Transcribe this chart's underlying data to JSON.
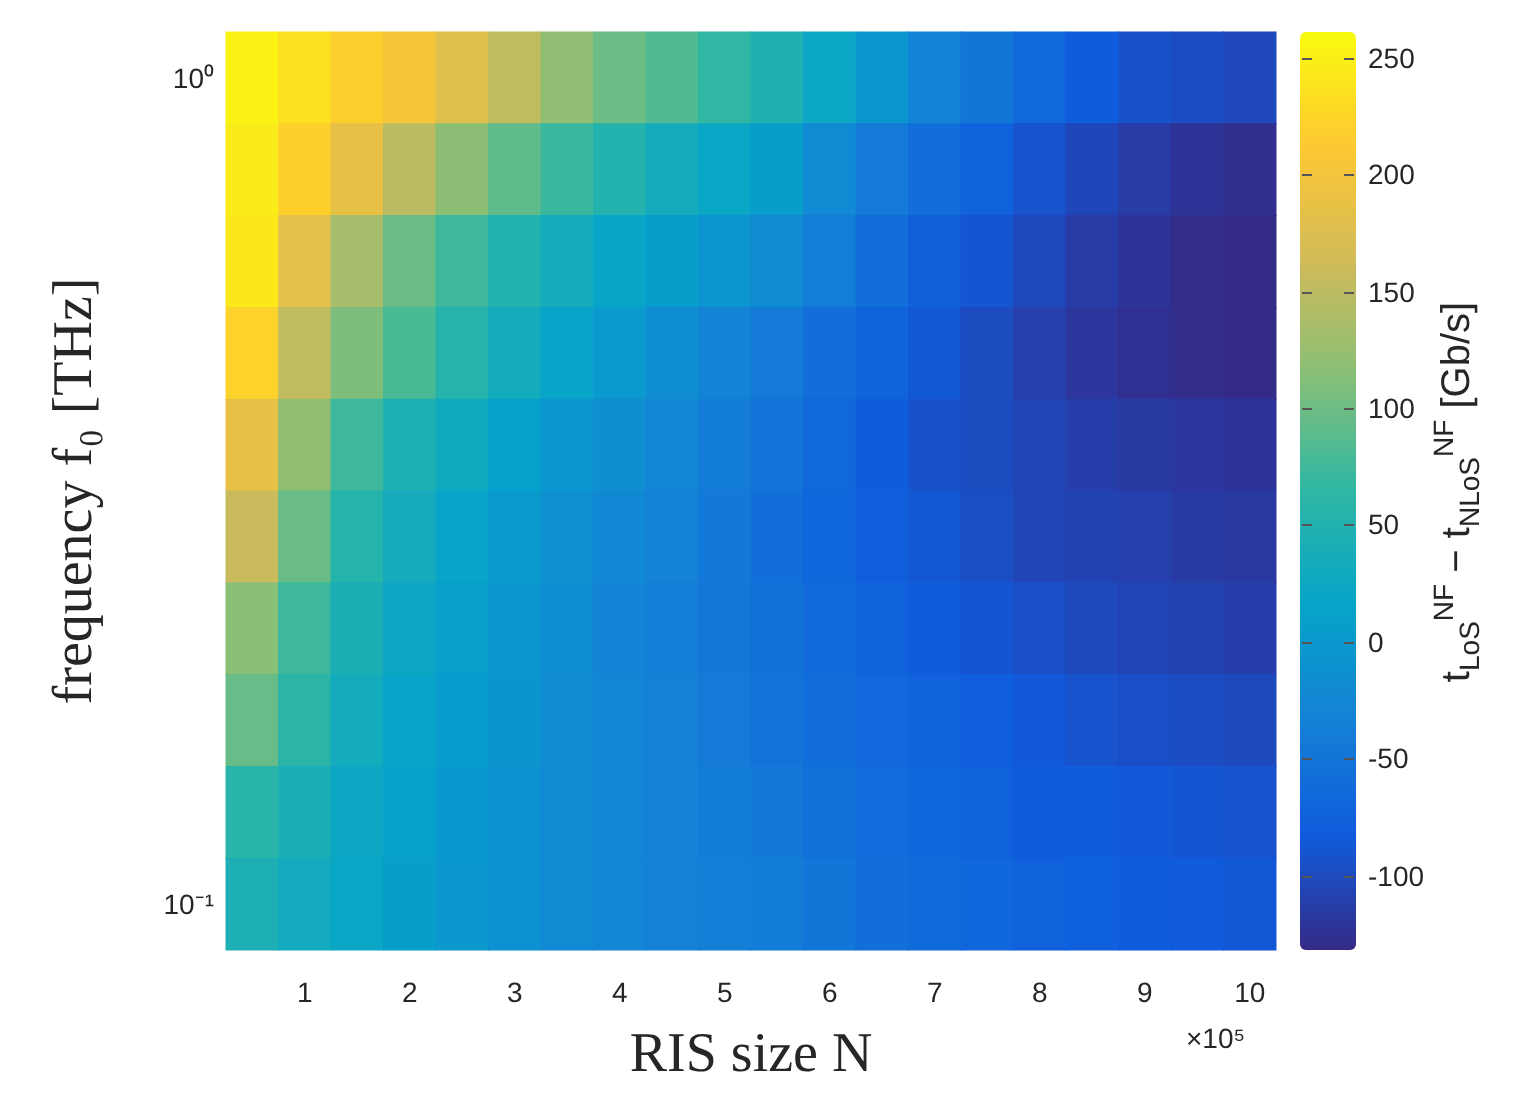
{
  "chart_data": {
    "type": "heatmap",
    "xlabel": "RIS size N",
    "ylabel": "frequency f₀ [THz]",
    "clabel": "t$_{LoS}$$^{NF}$ − t$_{NLoS}$$^{NF}$ [Gb/s]",
    "annotations": [
      "×10⁵"
    ],
    "categories": [
      null,
      "1",
      null,
      "2",
      null,
      "3",
      null,
      "4",
      null,
      "5",
      null,
      "6",
      null,
      "7",
      null,
      "8",
      null,
      "9",
      null,
      "10"
    ],
    "y_categories": [
      "10⁰",
      null,
      null,
      null,
      null,
      null,
      null,
      null,
      null,
      "10⁻¹"
    ],
    "clim": [
      -132,
      261
    ],
    "cticks": [
      -100,
      -50,
      0,
      50,
      100,
      150,
      200,
      250
    ],
    "cells": [
      [
        253,
        235,
        218,
        203,
        178,
        151,
        120,
        98,
        83,
        65,
        47,
        23,
        -3,
        -30,
        -50,
        -67,
        -83,
        -93,
        -99,
        -103
      ],
      [
        247,
        220,
        187,
        148,
        117,
        92,
        71,
        52,
        33,
        20,
        6,
        -21,
        -42,
        -57,
        -75,
        -92,
        -104,
        -114,
        -123,
        -128
      ],
      [
        243,
        182,
        134,
        97,
        73,
        52,
        34,
        19,
        7,
        -5,
        -18,
        -39,
        -59,
        -77,
        -90,
        -102,
        -114,
        -123,
        -129,
        -131
      ],
      [
        222,
        152,
        108,
        80,
        55,
        33,
        18,
        2,
        -17,
        -30,
        -42,
        -57,
        -72,
        -87,
        -100,
        -111,
        -120,
        -126,
        -129,
        -131
      ],
      [
        187,
        121,
        73,
        45,
        28,
        13,
        -2,
        -16,
        -28,
        -40,
        -52,
        -67,
        -81,
        -93,
        -100,
        -106,
        -112,
        -116,
        -119,
        -122
      ],
      [
        158,
        97,
        55,
        34,
        18,
        3,
        -12,
        -24,
        -33,
        -45,
        -57,
        -69,
        -79,
        -88,
        -97,
        -105,
        -108,
        -111,
        -115,
        -117
      ],
      [
        115,
        73,
        42,
        24,
        10,
        -2,
        -17,
        -29,
        -38,
        -47,
        -56,
        -65,
        -74,
        -83,
        -90,
        -96,
        -102,
        -106,
        -109,
        -112
      ],
      [
        96,
        60,
        33,
        18,
        5,
        -7,
        -19,
        -28,
        -34,
        -42,
        -51,
        -60,
        -68,
        -74,
        -80,
        -86,
        -92,
        -96,
        -99,
        -102
      ],
      [
        58,
        40,
        24,
        12,
        0,
        -11,
        -20,
        -28,
        -34,
        -40,
        -46,
        -55,
        -63,
        -69,
        -75,
        -81,
        -83,
        -86,
        -89,
        -92
      ],
      [
        44,
        32,
        20,
        7,
        -2,
        -11,
        -20,
        -28,
        -34,
        -38,
        -41,
        -50,
        -58,
        -64,
        -70,
        -76,
        -78,
        -81,
        -84,
        -87
      ]
    ]
  }
}
